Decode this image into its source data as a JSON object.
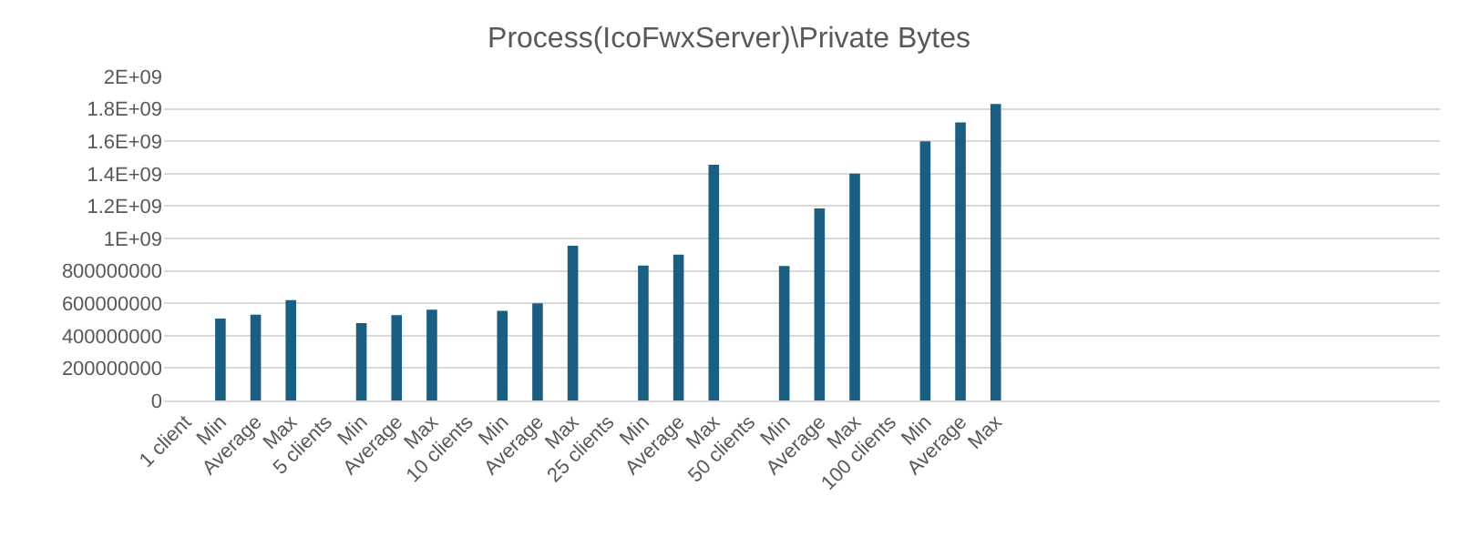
{
  "chart_data": {
    "type": "bar",
    "title": "Process(IcoFwxServer)\\Private Bytes",
    "categories": [
      "1 client",
      "Min",
      "Average",
      "Max",
      "5 clients",
      "Min",
      "Average",
      "Max",
      "10 clients",
      "Min",
      "Average",
      "Max",
      "25 clients",
      "Min",
      "Average",
      "Max",
      "50 clients",
      "Min",
      "Average",
      "Max",
      "100 clients",
      "Min",
      "Average",
      "Max",
      null,
      null,
      null,
      null,
      null,
      null,
      null,
      null,
      null,
      null,
      null,
      null
    ],
    "values": [
      null,
      505000000,
      530000000,
      620000000,
      null,
      477000000,
      527000000,
      560000000,
      null,
      553000000,
      600000000,
      955000000,
      null,
      833000000,
      900000000,
      1455000000,
      null,
      830000000,
      1186000000,
      1400000000,
      null,
      1600000000,
      1716000000,
      1830000000,
      null,
      null,
      null,
      null,
      null,
      null,
      null,
      null,
      null,
      null,
      null,
      null
    ],
    "color": "#1a5e82",
    "ylim": [
      0,
      2000000000
    ],
    "yticks": [
      0,
      {
        "value": 200000000,
        "label": "200000000"
      },
      {
        "value": 400000000,
        "label": "400000000"
      },
      {
        "value": 600000000,
        "label": "600000000"
      },
      {
        "value": 800000000,
        "label": "800000000"
      },
      {
        "value": 1000000000,
        "label": "1E+09"
      },
      {
        "value": 1200000000,
        "label": "1.2E+09"
      },
      {
        "value": 1400000000,
        "label": "1.4E+09"
      },
      {
        "value": 1600000000,
        "label": "1.6E+09"
      },
      {
        "value": 1800000000,
        "label": "1.8E+09"
      },
      {
        "value": 2000000000,
        "label": "2E+09"
      }
    ],
    "grid": "y",
    "legend": false
  }
}
